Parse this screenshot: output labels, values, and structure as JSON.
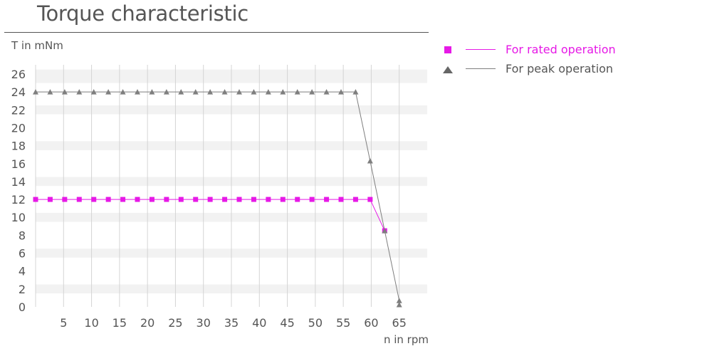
{
  "chart_data": {
    "type": "line",
    "title": "Torque characteristic",
    "xlabel": "n in rpm",
    "ylabel": "T in mNm",
    "xlim": [
      0,
      70
    ],
    "ylim": [
      0,
      26
    ],
    "x_ticks": [
      5,
      10,
      15,
      20,
      25,
      30,
      35,
      40,
      45,
      50,
      55,
      60,
      65
    ],
    "y_ticks": [
      0,
      2,
      4,
      6,
      8,
      10,
      12,
      14,
      16,
      18,
      20,
      22,
      24,
      26
    ],
    "grid": "alternating horizontal bands, vertical grid lines",
    "legend_position": "right",
    "series": [
      {
        "name": "For rated operation",
        "color": "#e619e6",
        "marker": "square",
        "x": [
          0,
          2.6,
          5.2,
          7.8,
          10.4,
          13,
          15.6,
          18.2,
          20.8,
          23.4,
          26,
          28.6,
          31.2,
          33.8,
          36.4,
          39,
          41.6,
          44.2,
          46.8,
          49.4,
          52,
          54.6,
          57.2,
          59.8,
          62.4
        ],
        "y": [
          12,
          12,
          12,
          12,
          12,
          12,
          12,
          12,
          12,
          12,
          12,
          12,
          12,
          12,
          12,
          12,
          12,
          12,
          12,
          12,
          12,
          12,
          12,
          12,
          8.5
        ]
      },
      {
        "name": "For peak operation",
        "color": "#7f7f7f",
        "marker": "triangle",
        "x": [
          0,
          2.6,
          5.2,
          7.8,
          10.4,
          13,
          15.6,
          18.2,
          20.8,
          23.4,
          26,
          28.6,
          31.2,
          33.8,
          36.4,
          39,
          41.6,
          44.2,
          46.8,
          49.4,
          52,
          54.6,
          57.2,
          59.8,
          62.4,
          65
        ],
        "y": [
          24,
          24,
          24,
          24,
          24,
          24,
          24,
          24,
          24,
          24,
          24,
          24,
          24,
          24,
          24,
          24,
          24,
          24,
          24,
          24,
          24,
          24,
          24,
          16.3,
          8.5,
          0.7
        ]
      }
    ]
  },
  "extra_points": [
    {
      "series": "For peak operation",
      "x": 65,
      "y": 0
    }
  ]
}
